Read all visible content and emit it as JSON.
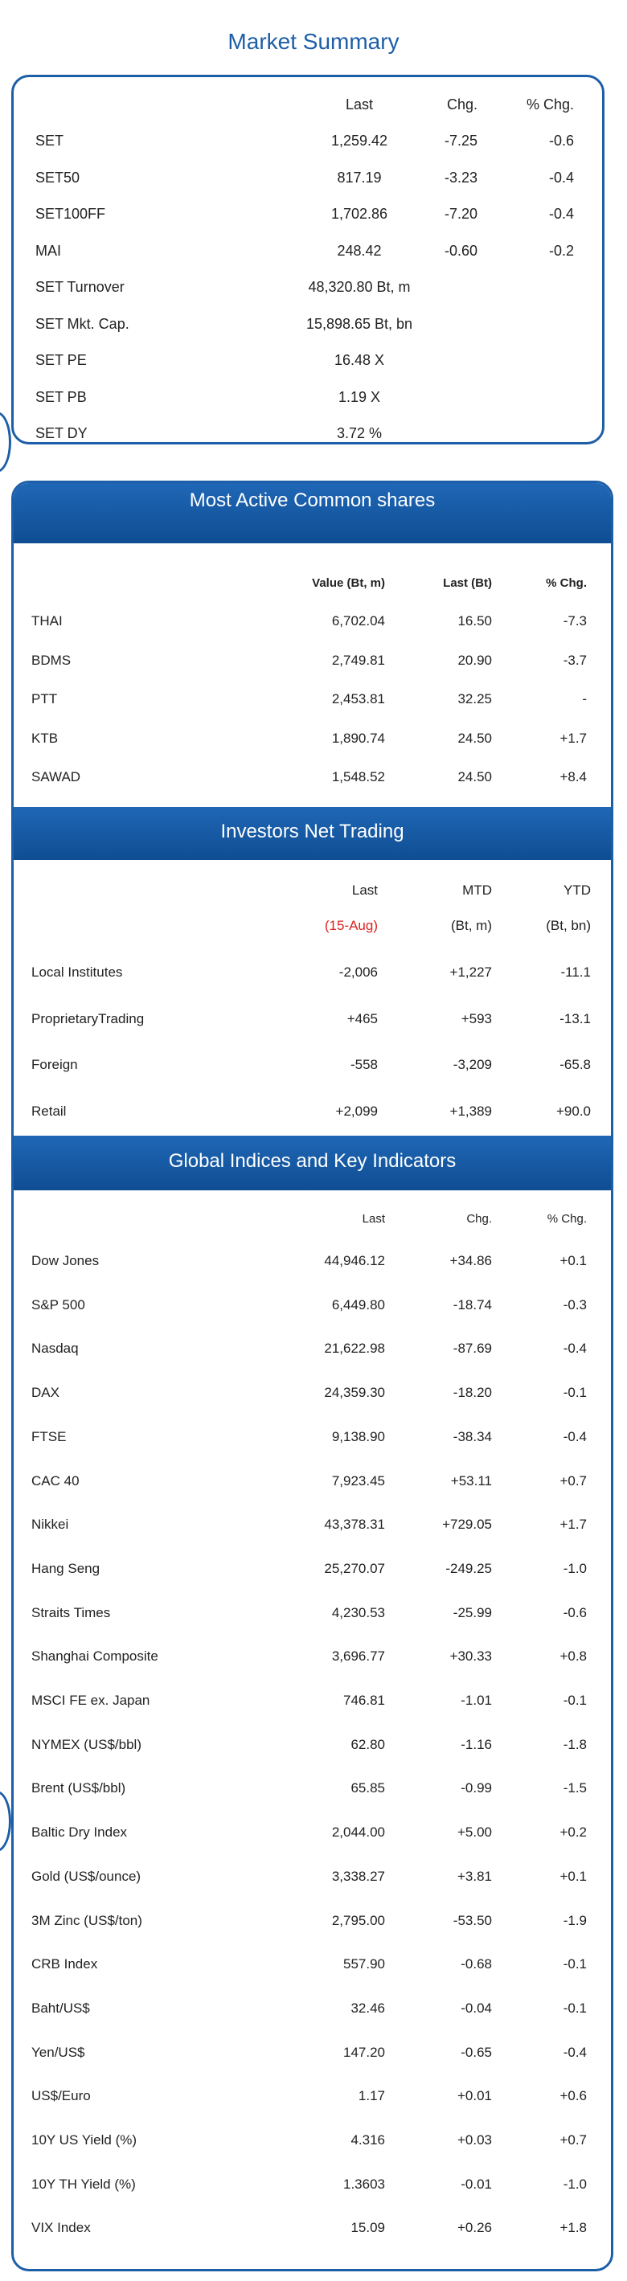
{
  "page_title": "Market Summary",
  "market_summary": {
    "headers": {
      "last": "Last",
      "chg": "Chg.",
      "pct": "% Chg."
    },
    "rows": [
      {
        "name": "SET",
        "last": "1,259.42",
        "chg": "-7.25",
        "pct": "-0.6"
      },
      {
        "name": "SET50",
        "last": "817.19",
        "chg": "-3.23",
        "pct": "-0.4"
      },
      {
        "name": "SET100FF",
        "last": "1,702.86",
        "chg": "-7.20",
        "pct": "-0.4"
      },
      {
        "name": "MAI",
        "last": "248.42",
        "chg": "-0.60",
        "pct": "-0.2"
      },
      {
        "name": "SET Turnover",
        "last": "48,320.80 Bt, m",
        "chg": "",
        "pct": ""
      },
      {
        "name": "SET Mkt. Cap.",
        "last": "15,898.65 Bt, bn",
        "chg": "",
        "pct": ""
      },
      {
        "name": "SET PE",
        "last": "16.48 X",
        "chg": "",
        "pct": ""
      },
      {
        "name": "SET PB",
        "last": "1.19 X",
        "chg": "",
        "pct": ""
      },
      {
        "name": "SET DY",
        "last": "3.72 %",
        "chg": "",
        "pct": ""
      }
    ]
  },
  "most_active": {
    "title": "Most Active Common shares",
    "headers": {
      "value": "Value (Bt, m)",
      "last": "Last (Bt)",
      "pct": "% Chg."
    },
    "rows": [
      {
        "name": "THAI",
        "value": "6,702.04",
        "last": "16.50",
        "pct": "-7.3"
      },
      {
        "name": "BDMS",
        "value": "2,749.81",
        "last": "20.90",
        "pct": "-3.7"
      },
      {
        "name": "PTT",
        "value": "2,453.81",
        "last": "32.25",
        "pct": "-"
      },
      {
        "name": "KTB",
        "value": "1,890.74",
        "last": "24.50",
        "pct": "+1.7"
      },
      {
        "name": "SAWAD",
        "value": "1,548.52",
        "last": "24.50",
        "pct": "+8.4"
      }
    ]
  },
  "investors": {
    "title": "Investors Net Trading",
    "headers": {
      "last": "Last",
      "mtd": "MTD",
      "ytd": "YTD"
    },
    "subheaders": {
      "last": "(15-Aug)",
      "mtd": "(Bt, m)",
      "ytd": "(Bt, bn)"
    },
    "date_color": "#e02020",
    "rows": [
      {
        "name": "Local Institutes",
        "last": "-2,006",
        "mtd": "+1,227",
        "ytd": "-11.1"
      },
      {
        "name": "ProprietaryTrading",
        "last": "+465",
        "mtd": "+593",
        "ytd": "-13.1"
      },
      {
        "name": "Foreign",
        "last": "-558",
        "mtd": "-3,209",
        "ytd": "-65.8"
      },
      {
        "name": "Retail",
        "last": "+2,099",
        "mtd": "+1,389",
        "ytd": "+90.0"
      }
    ]
  },
  "global": {
    "title": "Global Indices and Key Indicators",
    "headers": {
      "last": "Last",
      "chg": "Chg.",
      "pct": "% Chg."
    },
    "rows": [
      {
        "name": "Dow Jones",
        "last": "44,946.12",
        "chg": "+34.86",
        "pct": "+0.1"
      },
      {
        "name": "S&P 500",
        "last": "6,449.80",
        "chg": "-18.74",
        "pct": "-0.3"
      },
      {
        "name": "Nasdaq",
        "last": "21,622.98",
        "chg": "-87.69",
        "pct": "-0.4"
      },
      {
        "name": "DAX",
        "last": "24,359.30",
        "chg": "-18.20",
        "pct": "-0.1"
      },
      {
        "name": "FTSE",
        "last": "9,138.90",
        "chg": "-38.34",
        "pct": "-0.4"
      },
      {
        "name": "CAC 40",
        "last": "7,923.45",
        "chg": "+53.11",
        "pct": "+0.7"
      },
      {
        "name": "Nikkei",
        "last": "43,378.31",
        "chg": "+729.05",
        "pct": "+1.7"
      },
      {
        "name": "Hang Seng",
        "last": "25,270.07",
        "chg": "-249.25",
        "pct": "-1.0"
      },
      {
        "name": "Straits Times",
        "last": "4,230.53",
        "chg": "-25.99",
        "pct": "-0.6"
      },
      {
        "name": "Shanghai Composite",
        "last": "3,696.77",
        "chg": "+30.33",
        "pct": "+0.8"
      },
      {
        "name": "MSCI FE ex. Japan",
        "last": "746.81",
        "chg": "-1.01",
        "pct": "-0.1"
      },
      {
        "name": "NYMEX (US$/bbl)",
        "last": "62.80",
        "chg": "-1.16",
        "pct": "-1.8"
      },
      {
        "name": "Brent (US$/bbl)",
        "last": "65.85",
        "chg": "-0.99",
        "pct": "-1.5"
      },
      {
        "name": "Baltic Dry Index",
        "last": "2,044.00",
        "chg": "+5.00",
        "pct": "+0.2"
      },
      {
        "name": "Gold (US$/ounce)",
        "last": "3,338.27",
        "chg": "+3.81",
        "pct": "+0.1"
      },
      {
        "name": "3M Zinc (US$/ton)",
        "last": "2,795.00",
        "chg": "-53.50",
        "pct": "-1.9"
      },
      {
        "name": "CRB Index",
        "last": "557.90",
        "chg": "-0.68",
        "pct": "-0.1"
      },
      {
        "name": "Baht/US$",
        "last": "32.46",
        "chg": "-0.04",
        "pct": "-0.1"
      },
      {
        "name": "Yen/US$",
        "last": "147.20",
        "chg": "-0.65",
        "pct": "-0.4"
      },
      {
        "name": "US$/Euro",
        "last": "1.17",
        "chg": "+0.01",
        "pct": "+0.6"
      },
      {
        "name": "10Y US Yield (%)",
        "last": "4.316",
        "chg": "+0.03",
        "pct": "+0.7"
      },
      {
        "name": "10Y TH Yield (%)",
        "last": "1.3603",
        "chg": "-0.01",
        "pct": "-1.0"
      },
      {
        "name": "VIX Index",
        "last": "15.09",
        "chg": "+0.26",
        "pct": "+1.8"
      }
    ]
  }
}
